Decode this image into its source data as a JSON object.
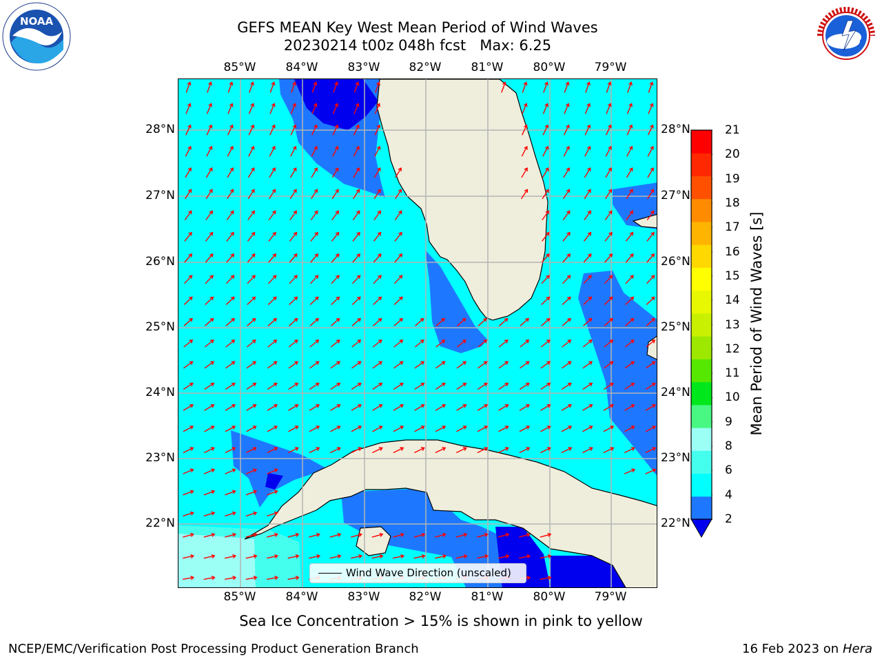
{
  "title": {
    "line1": "GEFS MEAN Key West Mean Period of Wind Waves",
    "line2": "20230214 t00z 048h fcst   Max: 6.25"
  },
  "map": {
    "lon_ticks": [
      "85°W",
      "84°W",
      "83°W",
      "82°W",
      "81°W",
      "80°W",
      "79°W"
    ],
    "lat_ticks": [
      "28°N",
      "27°N",
      "26°N",
      "25°N",
      "24°N",
      "23°N",
      "22°N"
    ],
    "colors": {
      "land": "#efeedc",
      "gt2": "#1e78ff",
      "gt4": "#00ffff",
      "gt6": "#45ffee",
      "gt8": "#9cfff6",
      "lt2": "#0000ee",
      "arrow": "#ff0000",
      "grid": "#b4b4b4"
    },
    "legend_label": "Wind Wave Direction (unscaled)"
  },
  "colorbar": {
    "label": "Mean Period of Wind Waves [s]",
    "ticks": [
      "2",
      "4",
      "6",
      "8",
      "9",
      "10",
      "11",
      "12",
      "13",
      "14",
      "15",
      "16",
      "17",
      "18",
      "19",
      "20",
      "21"
    ],
    "colors": [
      "#1e78ff",
      "#00ffff",
      "#45ffee",
      "#9cfff6",
      "#48f882",
      "#00e81c",
      "#56e800",
      "#9ee800",
      "#c8f000",
      "#e8f800",
      "#ffff00",
      "#ffd800",
      "#ffb400",
      "#ff8c00",
      "#ff5000",
      "#ff2800",
      "#ff0000"
    ],
    "under_color": "#0000ee"
  },
  "note": "Sea Ice Concentration > 15% is shown in pink to yellow",
  "footer": {
    "left": "NCEP/EMC/Verification Post Processing Product Generation Branch",
    "right_date": "16 Feb 2023 on",
    "right_host": "Hera"
  },
  "logos": {
    "noaa": "NOAA",
    "noaa_ring": "NATIONAL OCEANIC AND ATMOSPHERIC ADMINISTRATION",
    "noaa_bottom": "U.S. DEPARTMENT OF COMMERCE",
    "nws_ring": "NATIONAL WEATHER SERVICE"
  }
}
